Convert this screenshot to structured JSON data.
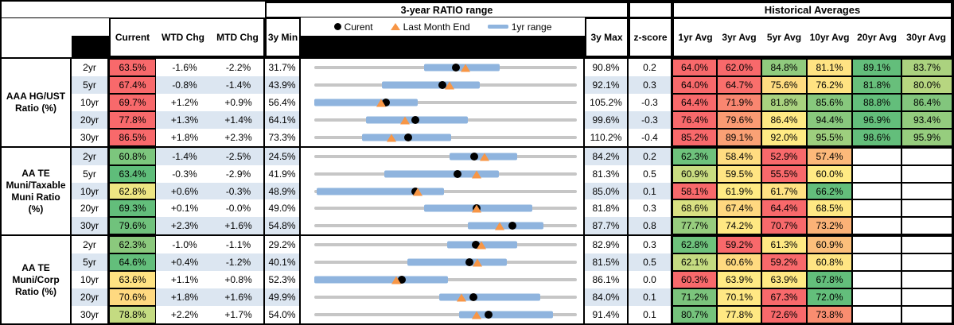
{
  "header": {
    "chart_title": "3-year RATIO range",
    "historical_title": "Historical Averages",
    "col_current": "Current",
    "col_wtd": "WTD Chg",
    "col_mtd": "MTD Chg",
    "col_3y_min": "3y Min",
    "col_3y_max": "3y Max",
    "col_zscore": "z-score",
    "avg_cols": [
      "1yr Avg",
      "3yr Avg",
      "5yr Avg",
      "10yr Avg",
      "20yr Avg",
      "30yr Avg"
    ],
    "legend_current": "Curent",
    "legend_last_month": "Last Month End",
    "legend_1yr_range": "1yr range"
  },
  "colors": {
    "alt_row": "#DCE6F1",
    "bar_1yr": "#8FB4DE",
    "track": "#C6C6C6",
    "dot": "#000000",
    "triangle": "#F79646",
    "heat_red": "#F8696B",
    "heat_yellow": "#FFEB84",
    "heat_green": "#63BE7B"
  },
  "chart_data": {
    "type": "table",
    "title": "3-year RATIO range",
    "legend_position": "top",
    "note": "Each row chart spans 3y Min to 3y Max; dot = current, triangle = last month end, blue bar = 1yr range (values in %).",
    "groups": [
      {
        "label": "AAA HG/UST Ratio (%)",
        "label_lines": [
          "AAA HG/UST",
          "Ratio (%)"
        ],
        "rows": [
          {
            "tenor": "2yr",
            "current": 63.5,
            "current_display": "63.5%",
            "current_color": "#F8696B",
            "wtd_chg": "-1.6%",
            "mtd_chg": "-2.2%",
            "min_3y": 31.7,
            "min_display": "31.7%",
            "max_3y": 90.8,
            "max_display": "90.8%",
            "z_score": "0.2",
            "last_month_end": 65.7,
            "range_1yr": [
              56.4,
              73.4
            ],
            "avgs": [
              "64.0%",
              "62.0%",
              "84.8%",
              "81.1%",
              "89.1%",
              "83.7%"
            ],
            "avg_colors": [
              "#F8696B",
              "#F8696B",
              "#90CB7E",
              "#FFE383",
              "#63BE7B",
              "#ABD27F"
            ]
          },
          {
            "tenor": "5yr",
            "current": 67.4,
            "current_display": "67.4%",
            "current_color": "#F8696B",
            "wtd_chg": "-0.8%",
            "mtd_chg": "-1.4%",
            "min_3y": 43.9,
            "min_display": "43.9%",
            "max_3y": 92.1,
            "max_display": "92.1%",
            "z_score": "0.3",
            "last_month_end": 68.8,
            "range_1yr": [
              56.3,
              74.3
            ],
            "avgs": [
              "64.0%",
              "64.7%",
              "75.6%",
              "76.2%",
              "81.8%",
              "80.0%"
            ],
            "avg_colors": [
              "#F8696B",
              "#F96F6C",
              "#FFDC81",
              "#FFE382",
              "#68BF7B",
              "#B7D680"
            ]
          },
          {
            "tenor": "10yr",
            "current": 69.7,
            "current_display": "69.7%",
            "current_color": "#F8696B",
            "wtd_chg": "+1.2%",
            "mtd_chg": "+0.9%",
            "min_3y": 56.4,
            "min_display": "56.4%",
            "max_3y": 105.2,
            "max_display": "105.2%",
            "z_score": "-0.3",
            "last_month_end": 68.8,
            "range_1yr": [
              56.4,
              75.6
            ],
            "avgs": [
              "64.4%",
              "71.9%",
              "81.8%",
              "85.6%",
              "88.8%",
              "86.4%"
            ],
            "avg_colors": [
              "#F8696B",
              "#F98670",
              "#A9D27F",
              "#87C87D",
              "#63BE7B",
              "#82C67D"
            ]
          },
          {
            "tenor": "20yr",
            "current": 77.8,
            "current_display": "77.8%",
            "current_color": "#F8696B",
            "wtd_chg": "+1.3%",
            "mtd_chg": "+1.4%",
            "min_3y": 64.1,
            "min_display": "64.1%",
            "max_3y": 99.6,
            "max_display": "99.6%",
            "z_score": "-0.3",
            "last_month_end": 76.4,
            "range_1yr": [
              71.1,
              84.9
            ],
            "avgs": [
              "76.4%",
              "79.6%",
              "86.4%",
              "94.4%",
              "96.9%",
              "93.4%"
            ],
            "avg_colors": [
              "#F8696B",
              "#FA9B73",
              "#FFEA84",
              "#88C87D",
              "#63BE7B",
              "#93CC7E"
            ]
          },
          {
            "tenor": "30yr",
            "current": 86.5,
            "current_display": "86.5%",
            "current_color": "#F8696B",
            "wtd_chg": "+1.8%",
            "mtd_chg": "+2.3%",
            "min_3y": 73.3,
            "min_display": "73.3%",
            "max_3y": 110.2,
            "max_display": "110.2%",
            "z_score": "-0.4",
            "last_month_end": 84.2,
            "range_1yr": [
              80.0,
              92.5
            ],
            "avgs": [
              "85.2%",
              "89.1%",
              "92.0%",
              "95.5%",
              "98.6%",
              "95.9%"
            ],
            "avg_colors": [
              "#F8696B",
              "#FAA175",
              "#FFEB84",
              "#9DCF7E",
              "#63BE7B",
              "#96CD7E"
            ]
          }
        ]
      },
      {
        "label": "AA TE Muni/Taxable Muni Ratio (%)",
        "label_lines": [
          "AA TE",
          "Muni/Taxable",
          "Muni Ratio",
          "(%)"
        ],
        "rows": [
          {
            "tenor": "2yr",
            "current": 60.8,
            "current_display": "60.8%",
            "current_color": "#7CC67D",
            "wtd_chg": "-1.4%",
            "mtd_chg": "-2.5%",
            "min_3y": 24.5,
            "min_display": "24.5%",
            "max_3y": 84.2,
            "max_display": "84.2%",
            "z_score": "0.2",
            "last_month_end": 63.3,
            "range_1yr": [
              55.2,
              70.6
            ],
            "avgs": [
              "62.3%",
              "58.4%",
              "52.9%",
              "57.4%",
              "",
              ""
            ],
            "avg_colors": [
              "#6EC27C",
              "#FFDC81",
              "#F8696B",
              "#FCB97A",
              "",
              ""
            ]
          },
          {
            "tenor": "5yr",
            "current": 63.4,
            "current_display": "63.4%",
            "current_color": "#5FBD7A",
            "wtd_chg": "-0.3%",
            "mtd_chg": "-2.9%",
            "min_3y": 41.9,
            "min_display": "41.9%",
            "max_3y": 81.3,
            "max_display": "81.3%",
            "z_score": "0.5",
            "last_month_end": 66.3,
            "range_1yr": [
              52.4,
              69.6
            ],
            "avgs": [
              "60.9%",
              "59.5%",
              "55.5%",
              "60.0%",
              "",
              ""
            ],
            "avg_colors": [
              "#C9DC81",
              "#FFE583",
              "#F8696B",
              "#FFEB84",
              "",
              ""
            ]
          },
          {
            "tenor": "10yr",
            "current": 62.8,
            "current_display": "62.8%",
            "current_color": "#EEE683",
            "wtd_chg": "+0.6%",
            "mtd_chg": "-0.3%",
            "min_3y": 48.9,
            "min_display": "48.9%",
            "max_3y": 85.0,
            "max_display": "85.0%",
            "z_score": "0.1",
            "last_month_end": 63.1,
            "range_1yr": [
              49.2,
              66.7
            ],
            "avgs": [
              "58.1%",
              "61.9%",
              "61.7%",
              "66.2%",
              "",
              ""
            ],
            "avg_colors": [
              "#F8696B",
              "#FFEB84",
              "#FFE283",
              "#63BE7B",
              "",
              ""
            ]
          },
          {
            "tenor": "20yr",
            "current": 69.3,
            "current_display": "69.3%",
            "current_color": "#63BE7B",
            "wtd_chg": "+0.1%",
            "mtd_chg": "-0.0%",
            "min_3y": 49.0,
            "min_display": "49.0%",
            "max_3y": 81.8,
            "max_display": "81.8%",
            "z_score": "0.3",
            "last_month_end": 69.3,
            "range_1yr": [
              62.7,
              76.2
            ],
            "avgs": [
              "68.6%",
              "67.4%",
              "64.4%",
              "68.5%",
              "",
              ""
            ],
            "avg_colors": [
              "#D9E082",
              "#FFD880",
              "#F8696B",
              "#FFE884",
              "",
              ""
            ]
          },
          {
            "tenor": "30yr",
            "current": 79.6,
            "current_display": "79.6%",
            "current_color": "#70C27C",
            "wtd_chg": "+2.3%",
            "mtd_chg": "+1.6%",
            "min_3y": 54.8,
            "min_display": "54.8%",
            "max_3y": 87.7,
            "max_display": "87.7%",
            "z_score": "0.8",
            "last_month_end": 78.0,
            "range_1yr": [
              74.0,
              83.5
            ],
            "avgs": [
              "77.7%",
              "74.2%",
              "70.7%",
              "73.2%",
              "",
              ""
            ],
            "avg_colors": [
              "#97CD7E",
              "#FFE883",
              "#F8696B",
              "#FBB277",
              "",
              ""
            ]
          }
        ]
      },
      {
        "label": "AA TE Muni/Corp Ratio (%)",
        "label_lines": [
          "AA TE",
          "Muni/Corp",
          "Ratio (%)"
        ],
        "rows": [
          {
            "tenor": "2yr",
            "current": 62.3,
            "current_display": "62.3%",
            "current_color": "#8BC97D",
            "wtd_chg": "-1.0%",
            "mtd_chg": "-1.1%",
            "min_3y": 29.2,
            "min_display": "29.2%",
            "max_3y": 82.9,
            "max_display": "82.9%",
            "z_score": "0.3",
            "last_month_end": 63.4,
            "range_1yr": [
              56.4,
              70.7
            ],
            "avgs": [
              "62.8%",
              "59.2%",
              "61.3%",
              "60.9%",
              "",
              ""
            ],
            "avg_colors": [
              "#6EC27C",
              "#F8696B",
              "#FFE983",
              "#FCBF7B",
              "",
              ""
            ]
          },
          {
            "tenor": "5yr",
            "current": 64.6,
            "current_display": "64.6%",
            "current_color": "#63BE7B",
            "wtd_chg": "+0.4%",
            "mtd_chg": "-1.2%",
            "min_3y": 40.1,
            "min_display": "40.1%",
            "max_3y": 81.5,
            "max_display": "81.5%",
            "z_score": "0.5",
            "last_month_end": 65.8,
            "range_1yr": [
              54.8,
              70.5
            ],
            "avgs": [
              "62.1%",
              "60.6%",
              "59.2%",
              "60.8%",
              "",
              ""
            ],
            "avg_colors": [
              "#C4DB81",
              "#FFDA80",
              "#F8696B",
              "#FFE583",
              "",
              ""
            ]
          },
          {
            "tenor": "10yr",
            "current": 63.6,
            "current_display": "63.6%",
            "current_color": "#FFE383",
            "wtd_chg": "+1.1%",
            "mtd_chg": "+0.8%",
            "min_3y": 52.3,
            "min_display": "52.3%",
            "max_3y": 86.1,
            "max_display": "86.1%",
            "z_score": "0.0",
            "last_month_end": 62.8,
            "range_1yr": [
              52.3,
              69.5
            ],
            "avgs": [
              "60.3%",
              "63.9%",
              "63.9%",
              "67.8%",
              "",
              ""
            ],
            "avg_colors": [
              "#F8696B",
              "#FFEB84",
              "#FFE983",
              "#63BE7B",
              "",
              ""
            ]
          },
          {
            "tenor": "20yr",
            "current": 70.6,
            "current_display": "70.6%",
            "current_color": "#FFD980",
            "wtd_chg": "+1.8%",
            "mtd_chg": "+1.6%",
            "min_3y": 49.9,
            "min_display": "49.9%",
            "max_3y": 84.0,
            "max_display": "84.0%",
            "z_score": "0.1",
            "last_month_end": 69.0,
            "range_1yr": [
              66.1,
              79.2
            ],
            "avgs": [
              "71.2%",
              "70.1%",
              "67.3%",
              "72.0%",
              "",
              ""
            ],
            "avg_colors": [
              "#7BC47C",
              "#FFE884",
              "#F8696B",
              "#63BE7B",
              "",
              ""
            ]
          },
          {
            "tenor": "30yr",
            "current": 78.8,
            "current_display": "78.8%",
            "current_color": "#C4DB81",
            "wtd_chg": "+2.2%",
            "mtd_chg": "+1.7%",
            "min_3y": 54.0,
            "min_display": "54.0%",
            "max_3y": 91.4,
            "max_display": "91.4%",
            "z_score": "0.1",
            "last_month_end": 77.1,
            "range_1yr": [
              74.6,
              88.0
            ],
            "avgs": [
              "80.7%",
              "77.8%",
              "72.6%",
              "73.8%",
              "",
              ""
            ],
            "avg_colors": [
              "#75C37C",
              "#FFE883",
              "#F8696B",
              "#F98D70",
              "",
              ""
            ]
          }
        ]
      }
    ]
  }
}
